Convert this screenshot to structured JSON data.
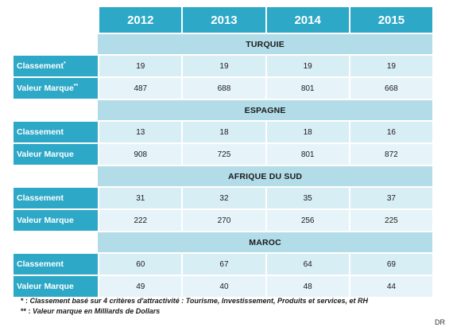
{
  "table": {
    "years": [
      "2012",
      "2013",
      "2014",
      "2015"
    ],
    "countries": [
      {
        "name": "TURQUIE",
        "rows": [
          {
            "label": "Classement",
            "mark": "*",
            "values": [
              "19",
              "19",
              "19",
              "19"
            ]
          },
          {
            "label": "Valeur Marque",
            "mark": "**",
            "values": [
              "487",
              "688",
              "801",
              "668"
            ]
          }
        ]
      },
      {
        "name": "ESPAGNE",
        "rows": [
          {
            "label": "Classement",
            "mark": "",
            "values": [
              "13",
              "18",
              "18",
              "16"
            ]
          },
          {
            "label": "Valeur Marque",
            "mark": "",
            "values": [
              "908",
              "725",
              "801",
              "872"
            ]
          }
        ]
      },
      {
        "name": "AFRIQUE DU SUD",
        "rows": [
          {
            "label": "Classement",
            "mark": "",
            "values": [
              "31",
              "32",
              "35",
              "37"
            ]
          },
          {
            "label": "Valeur Marque",
            "mark": "",
            "values": [
              "222",
              "270",
              "256",
              "225"
            ]
          }
        ]
      },
      {
        "name": "MAROC",
        "rows": [
          {
            "label": "Classement",
            "mark": "",
            "values": [
              "60",
              "67",
              "64",
              "69"
            ]
          },
          {
            "label": "Valeur Marque",
            "mark": "",
            "values": [
              "49",
              "40",
              "48",
              "44"
            ]
          }
        ]
      }
    ]
  },
  "notes": {
    "note1_mark": "* :",
    "note1_text": "Classement basé sur 4 critères d'attractivité : Tourisme, Investissement, Produits et services, et RH",
    "note2_mark": "** :",
    "note2_text": "Valeur marque en Milliards de Dollars"
  },
  "credit": "DR",
  "colors": {
    "header": "#2da8c7",
    "country_band": "#b3dce9",
    "row_light": "#d8eef5"
  }
}
